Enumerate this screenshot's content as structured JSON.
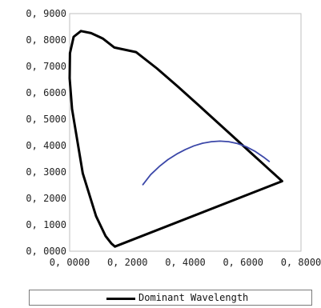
{
  "chart_data": {
    "type": "scatter",
    "title": "",
    "xlabel": "",
    "ylabel": "",
    "xlim": [
      0,
      0.8
    ],
    "ylim": [
      0,
      0.9
    ],
    "grid": false,
    "x_ticks": [
      "0, 0000",
      "0, 2000",
      "0, 4000",
      "0, 6000",
      "0, 8000"
    ],
    "y_ticks": [
      "0, 0000",
      "0, 1000",
      "0, 2000",
      "0, 3000",
      "0, 4000",
      "0, 5000",
      "0, 6000",
      "0, 7000",
      "0, 8000",
      "0, 9000"
    ],
    "legend": {
      "position": "bottom",
      "entries": [
        "Dominant Wavelength"
      ]
    },
    "series": [
      {
        "name": "Dominant Wavelength",
        "color": "#000000",
        "x": [
          0.1566,
          0.144,
          0.1241,
          0.0913,
          0.0454,
          0.0082,
          0.0,
          0.0011,
          0.0139,
          0.0389,
          0.0743,
          0.1142,
          0.1547,
          0.2296,
          0.3016,
          0.3731,
          0.4441,
          0.5125,
          0.5752,
          0.627,
          0.6658,
          0.6915,
          0.7079,
          0.719,
          0.726,
          0.7347,
          0.7347,
          0.1566
        ],
        "y": [
          0.0177,
          0.0297,
          0.0578,
          0.1327,
          0.295,
          0.5384,
          0.6548,
          0.7502,
          0.812,
          0.8338,
          0.8262,
          0.8059,
          0.7714,
          0.7543,
          0.6923,
          0.6245,
          0.5547,
          0.4866,
          0.4242,
          0.3725,
          0.334,
          0.3083,
          0.292,
          0.2809,
          0.274,
          0.2653,
          0.2653,
          0.0177
        ]
      },
      {
        "name": "",
        "color": "#3b47a8",
        "x": [
          0.2532,
          0.28,
          0.31,
          0.34,
          0.37,
          0.4,
          0.43,
          0.46,
          0.49,
          0.52,
          0.55,
          0.58,
          0.61,
          0.64,
          0.67,
          0.69
        ],
        "y": [
          0.252,
          0.29,
          0.321,
          0.347,
          0.368,
          0.385,
          0.399,
          0.409,
          0.415,
          0.417,
          0.415,
          0.408,
          0.396,
          0.379,
          0.357,
          0.34
        ]
      }
    ]
  }
}
